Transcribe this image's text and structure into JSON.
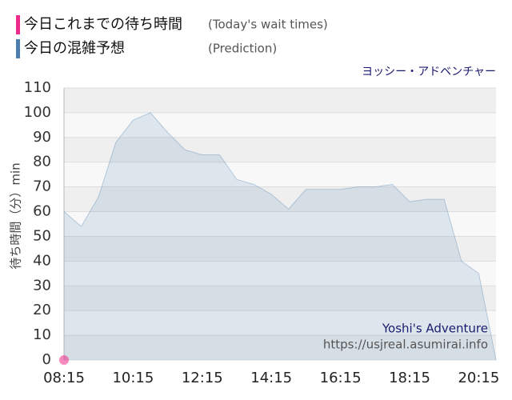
{
  "chart_data": {
    "type": "area",
    "title": "ヨッシー・アドベンチャー",
    "y_label": "待ち時間（分）min",
    "watermark": [
      "Yoshi's Adventure",
      "https://usjreal.asumirai.info"
    ],
    "categories": [
      "08:15",
      null,
      null,
      null,
      "10:15",
      null,
      null,
      null,
      "12:15",
      null,
      null,
      null,
      "14:15",
      null,
      null,
      null,
      "16:15",
      null,
      null,
      null,
      "18:15",
      null,
      null,
      null,
      "20:15",
      null
    ],
    "series": [
      {
        "name": "今日これまでの待ち時間",
        "legend_note": "(Today's wait times)",
        "color": "#ee2a8a",
        "style": "point",
        "values": [
          0,
          null,
          null,
          null,
          null,
          null,
          null,
          null,
          null,
          null,
          null,
          null,
          null,
          null,
          null,
          null,
          null,
          null,
          null,
          null,
          null,
          null,
          null,
          null,
          null,
          null
        ]
      },
      {
        "name": "今日の混雑予想",
        "legend_note": "(Prediction)",
        "color": "#4a7fb0",
        "style": "area",
        "values": [
          60,
          54,
          66,
          88,
          97,
          100,
          92,
          85,
          83,
          83,
          73,
          71,
          67,
          61,
          69,
          69,
          69,
          70,
          70,
          71,
          64,
          65,
          65,
          40,
          35,
          0
        ]
      }
    ],
    "ylim": [
      0,
      110
    ],
    "yticks": [
      0,
      10,
      20,
      30,
      40,
      50,
      60,
      70,
      80,
      90,
      100,
      110
    ],
    "grid": true
  }
}
